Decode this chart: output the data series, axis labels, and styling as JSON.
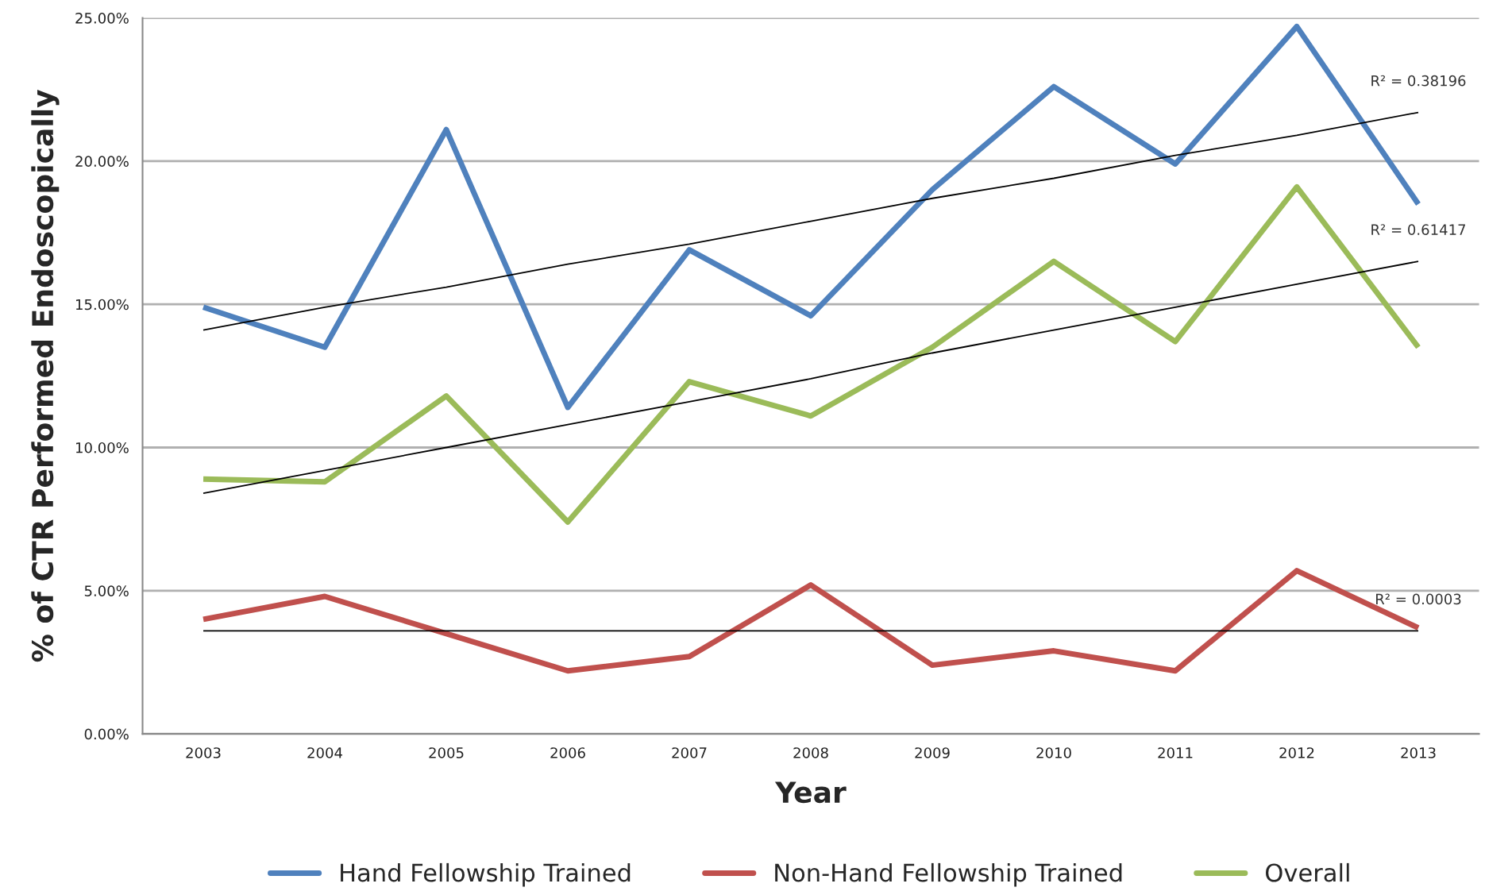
{
  "chart_data": {
    "type": "line",
    "xlabel": "Year",
    "ylabel": "% of CTR Performed Endoscopically",
    "categories": [
      "2003",
      "2004",
      "2005",
      "2006",
      "2007",
      "2008",
      "2009",
      "2010",
      "2011",
      "2012",
      "2013"
    ],
    "ylim": [
      0,
      25
    ],
    "yticks": [
      {
        "value": 0,
        "label": "0.00%"
      },
      {
        "value": 5,
        "label": "5.00%"
      },
      {
        "value": 10,
        "label": "10.00%"
      },
      {
        "value": 15,
        "label": "15.00%"
      },
      {
        "value": 20,
        "label": "20.00%"
      },
      {
        "value": 25,
        "label": "25.00%"
      }
    ],
    "series": [
      {
        "name": "Hand Fellowship Trained",
        "color": "#4f81bd",
        "values": [
          14.9,
          13.5,
          21.1,
          11.4,
          16.9,
          14.6,
          19.0,
          22.6,
          19.9,
          24.7,
          18.5
        ]
      },
      {
        "name": "Non-Hand Fellowship Trained",
        "color": "#c0504d",
        "values": [
          4.0,
          4.8,
          3.5,
          2.2,
          2.7,
          5.2,
          2.4,
          2.9,
          2.2,
          5.7,
          3.7
        ]
      },
      {
        "name": "Overall",
        "color": "#9bbb59",
        "values": [
          8.9,
          8.8,
          11.8,
          7.4,
          12.3,
          11.1,
          13.5,
          16.5,
          13.7,
          19.1,
          13.5
        ]
      },
      {
        "type": "line",
        "color": "#000000",
        "values": [
          14.1,
          14.9,
          15.6,
          16.4,
          17.1,
          17.9,
          18.7,
          19.4,
          20.2,
          20.9,
          21.7
        ]
      },
      {
        "type": "line",
        "color": "#000000",
        "values": [
          8.4,
          9.2,
          10.0,
          10.8,
          11.6,
          12.4,
          13.3,
          14.1,
          14.9,
          15.7,
          16.5
        ]
      },
      {
        "type": "line",
        "color": "#000000",
        "values": [
          3.6,
          3.6,
          3.6,
          3.6,
          3.6,
          3.6,
          3.6,
          3.6,
          3.6,
          3.6,
          3.6
        ]
      }
    ],
    "annotations": [
      {
        "text": "R² = 0.38196",
        "y": 21.7
      },
      {
        "text": "R² = 0.61417",
        "y": 16.5
      },
      {
        "text": "R² = 0.0003",
        "y": 3.6
      }
    ],
    "grid": "y",
    "legend": "bottom",
    "marker": "none",
    "line_style": "solid"
  }
}
